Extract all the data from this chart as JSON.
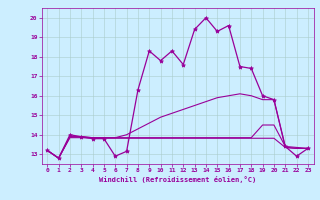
{
  "xlabel": "Windchill (Refroidissement éolien,°C)",
  "background_color": "#cceeff",
  "grid_color": "#aacccc",
  "line_color": "#990099",
  "xlim": [
    -0.5,
    23.5
  ],
  "ylim": [
    12.5,
    20.5
  ],
  "xticks": [
    0,
    1,
    2,
    3,
    4,
    5,
    6,
    7,
    8,
    9,
    10,
    11,
    12,
    13,
    14,
    15,
    16,
    17,
    18,
    19,
    20,
    21,
    22,
    23
  ],
  "yticks": [
    13,
    14,
    15,
    16,
    17,
    18,
    19,
    20
  ],
  "series": [
    {
      "x": [
        0,
        1,
        2,
        3,
        4,
        5,
        6,
        7,
        8,
        9,
        10,
        11,
        12,
        13,
        14,
        15,
        16,
        17,
        18,
        19,
        20,
        21,
        22,
        23
      ],
      "y": [
        13.2,
        12.8,
        14.0,
        13.9,
        13.8,
        13.8,
        12.9,
        13.15,
        16.3,
        18.3,
        17.8,
        18.3,
        17.6,
        19.4,
        20.0,
        19.3,
        19.6,
        17.5,
        17.4,
        16.0,
        15.8,
        13.4,
        12.9,
        13.3
      ],
      "marker": "*",
      "markersize": 3,
      "linewidth": 0.9,
      "linestyle": "-"
    },
    {
      "x": [
        0,
        1,
        2,
        3,
        4,
        5,
        6,
        7,
        8,
        9,
        10,
        11,
        12,
        13,
        14,
        15,
        16,
        17,
        18,
        19,
        20,
        21,
        22,
        23
      ],
      "y": [
        13.2,
        12.8,
        13.9,
        13.9,
        13.85,
        13.85,
        13.85,
        14.0,
        14.3,
        14.6,
        14.9,
        15.1,
        15.3,
        15.5,
        15.7,
        15.9,
        16.0,
        16.1,
        16.0,
        15.8,
        15.8,
        13.35,
        13.3,
        13.3
      ],
      "marker": null,
      "markersize": 0,
      "linewidth": 0.8,
      "linestyle": "-"
    },
    {
      "x": [
        0,
        1,
        2,
        3,
        4,
        5,
        6,
        7,
        8,
        9,
        10,
        11,
        12,
        13,
        14,
        15,
        16,
        17,
        18,
        19,
        20,
        21,
        22,
        23
      ],
      "y": [
        13.2,
        12.8,
        13.9,
        13.9,
        13.85,
        13.85,
        13.85,
        13.85,
        13.85,
        13.85,
        13.85,
        13.85,
        13.85,
        13.85,
        13.85,
        13.85,
        13.85,
        13.85,
        13.85,
        14.5,
        14.5,
        13.4,
        13.35,
        13.3
      ],
      "marker": null,
      "markersize": 0,
      "linewidth": 0.8,
      "linestyle": "-"
    },
    {
      "x": [
        0,
        1,
        2,
        3,
        4,
        5,
        6,
        7,
        8,
        9,
        10,
        11,
        12,
        13,
        14,
        15,
        16,
        17,
        18,
        19,
        20,
        21,
        22,
        23
      ],
      "y": [
        13.2,
        12.8,
        13.85,
        13.85,
        13.82,
        13.82,
        13.82,
        13.82,
        13.82,
        13.82,
        13.82,
        13.82,
        13.82,
        13.82,
        13.82,
        13.82,
        13.82,
        13.82,
        13.82,
        13.82,
        13.82,
        13.35,
        13.3,
        13.3
      ],
      "marker": null,
      "markersize": 0,
      "linewidth": 0.8,
      "linestyle": "-"
    }
  ]
}
